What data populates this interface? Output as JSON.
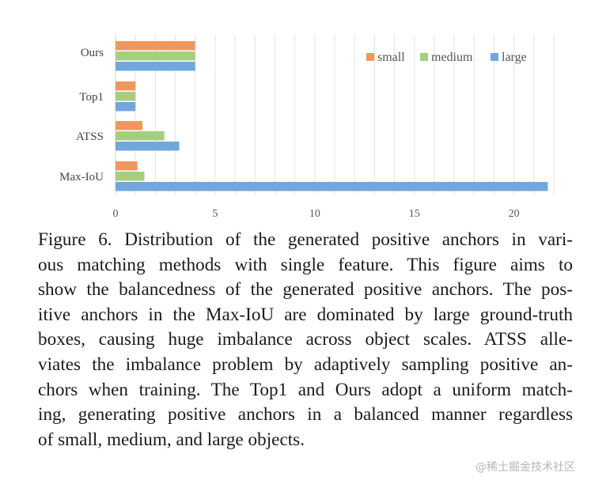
{
  "chart_data": {
    "type": "bar",
    "orientation": "horizontal",
    "categories": [
      "Ours",
      "Top1",
      "ATSS",
      "Max-IoU"
    ],
    "series": [
      {
        "name": "small",
        "color": "#f0975d",
        "values": [
          4.0,
          1.0,
          1.35,
          1.1
        ]
      },
      {
        "name": "medium",
        "color": "#a5cf7f",
        "values": [
          4.0,
          1.0,
          2.45,
          1.45
        ]
      },
      {
        "name": "large",
        "color": "#73a7db",
        "values": [
          4.0,
          1.0,
          3.2,
          21.7
        ]
      }
    ],
    "xlim": [
      0,
      22
    ],
    "xticks": [
      "0",
      "5",
      "10",
      "15",
      "20"
    ],
    "grid": true,
    "legend_position": "top-right",
    "title": "",
    "xlabel": "",
    "ylabel": ""
  },
  "caption": {
    "lines": [
      "Figure 6. Distribution of the generated positive anchors in vari-",
      "ous matching methods with single feature.  This figure aims to",
      "show the balancedness of the generated positive anchors. The pos-",
      "itive anchors in the Max-IoU are dominated by large ground-truth",
      "boxes, causing huge imbalance across object scales.  ATSS alle-",
      "viates the imbalance problem by adaptively sampling positive an-",
      "chors when training. The Top1 and Ours adopt a uniform match-",
      "ing, generating positive anchors in a balanced manner regardless",
      "of small, medium, and large objects."
    ]
  },
  "watermark": "@稀土掘金技术社区"
}
